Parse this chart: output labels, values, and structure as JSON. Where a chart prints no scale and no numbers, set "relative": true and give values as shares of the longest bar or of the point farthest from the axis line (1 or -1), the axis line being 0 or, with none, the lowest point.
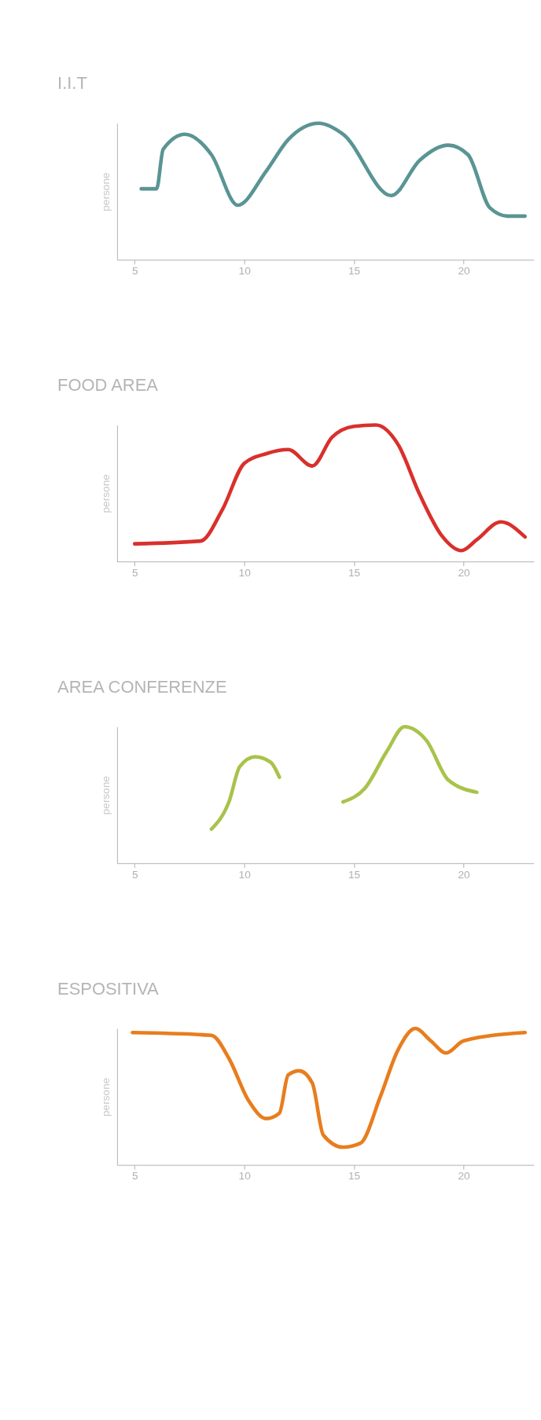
{
  "chart_data": [
    {
      "type": "line",
      "title": "I.I.T",
      "ylabel": "persone",
      "relative": true,
      "tick_labels": "x",
      "grid": false,
      "legend": false,
      "marker": "none",
      "line_style": "solid",
      "xlim": [
        4.2,
        23.2
      ],
      "xticks": [
        5,
        10,
        15,
        20
      ],
      "x": [
        5.3,
        6.0,
        6.3,
        7.3,
        8.5,
        9.7,
        11.0,
        12.0,
        13.4,
        14.5,
        16.7,
        18.0,
        19.3,
        20.2,
        21.2,
        22.0,
        22.8
      ],
      "series": [
        {
          "color": "#5a9494",
          "values": [
            0.52,
            0.52,
            0.81,
            0.92,
            0.77,
            0.4,
            0.65,
            0.88,
            1.0,
            0.92,
            0.47,
            0.73,
            0.84,
            0.77,
            0.38,
            0.32,
            0.32
          ]
        }
      ]
    },
    {
      "type": "line",
      "title": "FOOD AREA",
      "ylabel": "persone",
      "relative": true,
      "tick_labels": "x",
      "grid": false,
      "legend": false,
      "marker": "none",
      "line_style": "solid",
      "xlim": [
        4.2,
        23.2
      ],
      "xticks": [
        5,
        10,
        15,
        20
      ],
      "x": [
        5.0,
        8.0,
        9.0,
        10.0,
        11.0,
        12.0,
        13.1,
        14.0,
        15.0,
        16.0,
        17.0,
        18.0,
        19.0,
        19.9,
        20.6,
        21.7,
        22.8
      ],
      "series": [
        {
          "color": "#d9302c",
          "values": [
            0.13,
            0.15,
            0.38,
            0.72,
            0.79,
            0.82,
            0.7,
            0.91,
            0.99,
            1.0,
            0.86,
            0.49,
            0.19,
            0.08,
            0.16,
            0.29,
            0.18
          ]
        }
      ]
    },
    {
      "type": "line",
      "title": "AREA CONFERENZE",
      "ylabel": "persone",
      "relative": true,
      "tick_labels": "x",
      "grid": false,
      "legend": false,
      "marker": "none",
      "line_style": "solid",
      "xlim": [
        4.2,
        23.2
      ],
      "xticks": [
        5,
        10,
        15,
        20
      ],
      "x": [
        8.5,
        9.3,
        9.8,
        10.5,
        11.2,
        11.6,
        13.0,
        14.5,
        15.5,
        16.5,
        17.3,
        18.3,
        19.3,
        20.6
      ],
      "series": [
        {
          "color": "#a8c34a",
          "values": [
            0.25,
            0.45,
            0.71,
            0.78,
            0.74,
            0.63,
            null,
            0.45,
            0.55,
            0.82,
            1.0,
            0.9,
            0.61,
            0.52
          ]
        }
      ]
    },
    {
      "type": "line",
      "title": "ESPOSITIVA",
      "ylabel": "persone",
      "relative": true,
      "tick_labels": "x",
      "grid": false,
      "legend": false,
      "marker": "none",
      "line_style": "solid",
      "xlim": [
        4.2,
        23.2
      ],
      "xticks": [
        5,
        10,
        15,
        20
      ],
      "x": [
        4.9,
        8.5,
        9.3,
        10.2,
        11.0,
        11.6,
        12.0,
        12.5,
        13.1,
        13.6,
        14.5,
        15.3,
        16.2,
        17.0,
        17.8,
        18.5,
        19.2,
        20.0,
        22.8
      ],
      "series": [
        {
          "color": "#e87d1e",
          "values": [
            0.97,
            0.95,
            0.78,
            0.47,
            0.34,
            0.38,
            0.66,
            0.69,
            0.6,
            0.22,
            0.13,
            0.16,
            0.5,
            0.84,
            1.0,
            0.91,
            0.82,
            0.91,
            0.97
          ]
        }
      ]
    }
  ]
}
